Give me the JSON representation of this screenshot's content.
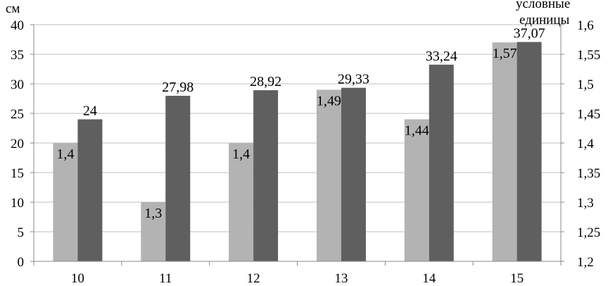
{
  "chart_data": {
    "type": "bar",
    "categories": [
      "10",
      "11",
      "12",
      "13",
      "14",
      "15"
    ],
    "series": [
      {
        "axis": "right",
        "color": "#b3b3b3",
        "values": [
          1.4,
          1.3,
          1.4,
          1.49,
          1.44,
          1.57
        ],
        "labels": [
          "1,4",
          "1,3",
          "1,4",
          "1,49",
          "1,44",
          "1,57"
        ]
      },
      {
        "axis": "left",
        "color": "#5f5f5f",
        "values": [
          24,
          27.98,
          28.92,
          29.33,
          33.24,
          37.07
        ],
        "labels": [
          "24",
          "27,98",
          "28,92",
          "29,33",
          "33,24",
          "37,07"
        ]
      }
    ],
    "ylabel_left": "см",
    "ylabel_right_line1": "условные",
    "ylabel_right_line2": "единицы",
    "ylim_left": [
      0,
      40
    ],
    "ylim_right": [
      1.2,
      1.6
    ],
    "left_ticks": [
      "0",
      "5",
      "10",
      "15",
      "20",
      "25",
      "30",
      "35",
      "40"
    ],
    "right_ticks": [
      "1,2",
      "1,25",
      "1,3",
      "1,35",
      "1,4",
      "1,45",
      "1,5",
      "1,55",
      "1,6"
    ],
    "grid": true,
    "legend": "none",
    "axis_color": "#888888",
    "grid_color": "#bfbfbf"
  }
}
